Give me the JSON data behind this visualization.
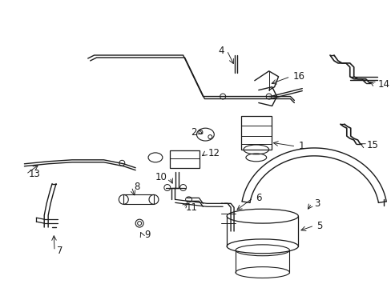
{
  "bg_color": "#ffffff",
  "line_color": "#1a1a1a",
  "figsize": [
    4.89,
    3.6
  ],
  "dpi": 100,
  "lw_main": 0.9,
  "lw_thin": 0.7,
  "label_fs": 8.5
}
